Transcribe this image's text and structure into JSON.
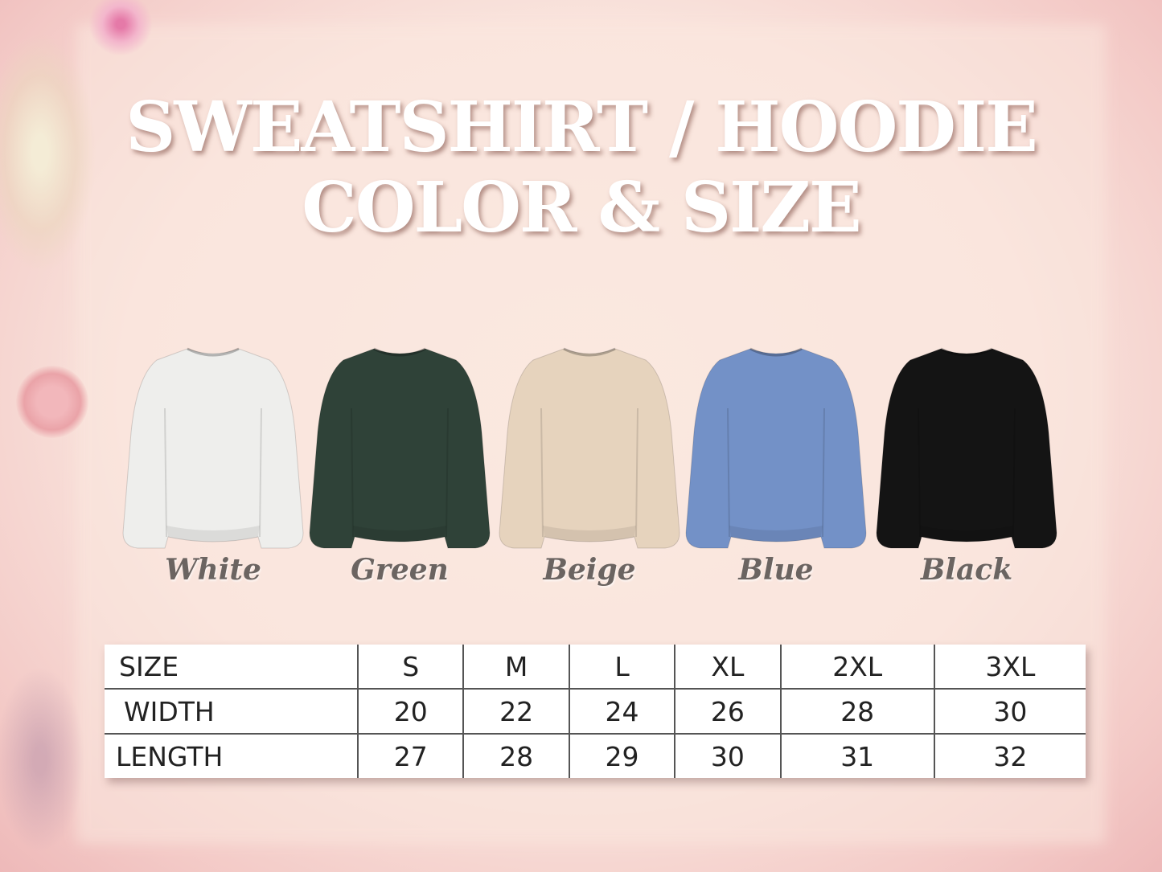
{
  "title_line1": "SWEATSHIRT / HOODIE",
  "title_line2": "COLOR & SIZE",
  "colors": [
    {
      "label": "White",
      "fill": "#eeeeec"
    },
    {
      "label": "Green",
      "fill": "#2f4238"
    },
    {
      "label": "Beige",
      "fill": "#e6d3bd"
    },
    {
      "label": "Blue",
      "fill": "#7391c7"
    },
    {
      "label": "Black",
      "fill": "#141414"
    }
  ],
  "size_table": {
    "header": [
      "SIZE",
      "S",
      "M",
      "L",
      "XL",
      "2XL",
      "3XL"
    ],
    "rows": [
      [
        "WIDTH",
        "20",
        "22",
        "24",
        "26",
        "28",
        "30"
      ],
      [
        "LENGTH",
        "27",
        "28",
        "29",
        "30",
        "31",
        "32"
      ]
    ]
  }
}
